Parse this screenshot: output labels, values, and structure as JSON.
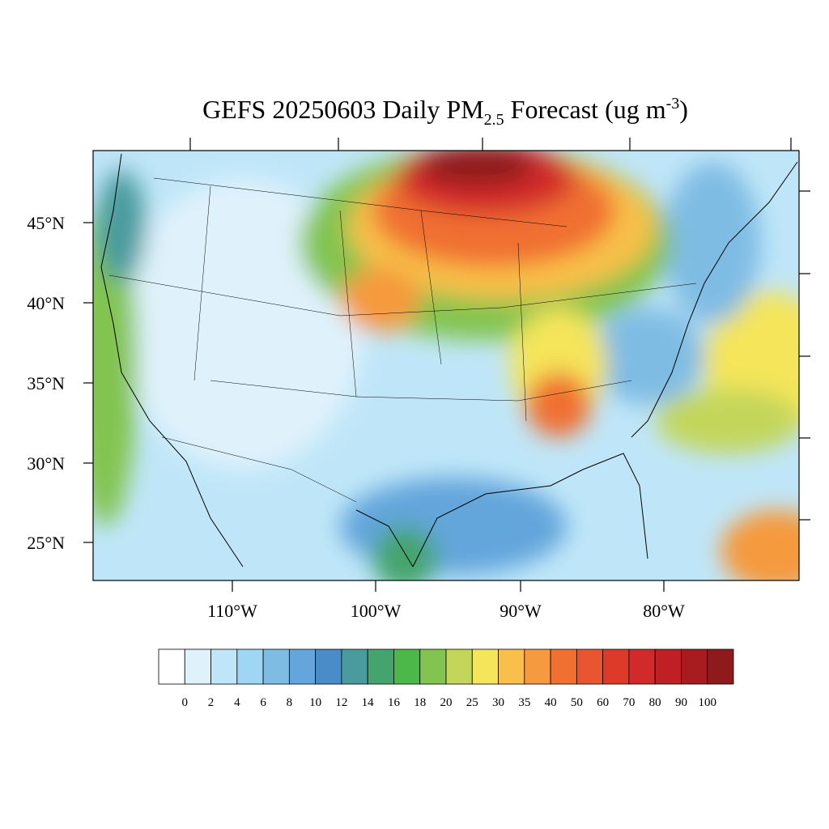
{
  "title": {
    "main": "GEFS 20250603 Daily PM",
    "sub": "2.5",
    "mid": " Forecast (ug m",
    "sup": "-3",
    "end": ")"
  },
  "lat_labels": [
    "45°N",
    "40°N",
    "35°N",
    "30°N",
    "25°N"
  ],
  "lon_labels": [
    "110°W",
    "100°W",
    "90°W",
    "80°W"
  ],
  "colorbar": {
    "colors": [
      "#ffffff",
      "#dff2fc",
      "#bfe6f8",
      "#9fd6f4",
      "#7fbce4",
      "#64a6db",
      "#4a8cc8",
      "#4a9b9e",
      "#45a46d",
      "#4db84a",
      "#82c450",
      "#c3d65a",
      "#f4e55a",
      "#f8c04a",
      "#f59a3e",
      "#f07030",
      "#e85530",
      "#dd3a2a",
      "#d22a2a",
      "#bf1f25",
      "#a81c20",
      "#8e1a1c"
    ],
    "labels": [
      0,
      2,
      4,
      6,
      8,
      10,
      12,
      14,
      16,
      18,
      20,
      25,
      30,
      35,
      40,
      50,
      60,
      70,
      80,
      90,
      100
    ]
  }
}
